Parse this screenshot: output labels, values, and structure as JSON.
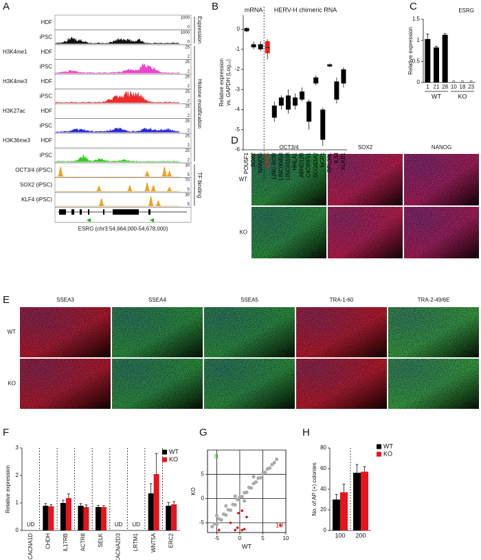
{
  "panel_a": {
    "letter": "A",
    "sections": [
      {
        "group": "Expression",
        "tracks": [
          {
            "rows": [
              {
                "label": "HDF",
                "scale": [
                  1000,
                  0
                ]
              },
              {
                "label": "iPSC",
                "scale": [
                  1000,
                  0
                ],
                "color": "#111111"
              }
            ]
          }
        ]
      },
      {
        "group": "Histone modification",
        "tracks": [
          {
            "mark": "H3K4me1",
            "rows": [
              {
                "label": "HDF",
                "scale": [
                  25,
                  2
                ]
              },
              {
                "label": "iPSC",
                "scale": [
                  25,
                  2
                ],
                "color": "#ee44cc"
              }
            ]
          },
          {
            "mark": "H3K4me3",
            "rows": [
              {
                "label": "HDF",
                "scale": [
                  25,
                  2
                ]
              },
              {
                "label": "iPSC",
                "scale": [
                  25,
                  2
                ],
                "color": "#ee2a2a"
              }
            ]
          },
          {
            "mark": "H3K27ac",
            "rows": [
              {
                "label": "HDF",
                "scale": [
                  25,
                  2
                ]
              },
              {
                "label": "iPSC",
                "scale": [
                  25,
                  2
                ],
                "color": "#2a2ad8"
              }
            ]
          },
          {
            "mark": "H3K36me3",
            "rows": [
              {
                "label": "HDF",
                "scale": [
                  25,
                  2
                ]
              },
              {
                "label": "iPSC",
                "scale": [
                  25,
                  2
                ],
                "color": "#33cc22"
              }
            ]
          }
        ]
      },
      {
        "group": "TF binding",
        "tracks": [
          {
            "rows": [
              {
                "label": "OCT3/4 (iPSC)",
                "scale": [
                  30,
                  5
                ],
                "color": "#f0a020"
              }
            ]
          },
          {
            "rows": [
              {
                "label": "SOX2 (iPSC)",
                "scale": [
                  70,
                  5
                ],
                "color": "#f0a020"
              }
            ]
          },
          {
            "rows": [
              {
                "label": "KLF4 (iPSC)",
                "scale": [
                  30,
                  5
                ],
                "color": "#f0a020"
              }
            ]
          }
        ]
      }
    ],
    "gene_label": "ESRG (chr3:54,664,000-54,678,000)"
  },
  "panel_d": {
    "letter": "D",
    "columns": [
      "OCT3/4",
      "SOX2",
      "NANOG"
    ],
    "rows": [
      "WT",
      "KO"
    ],
    "colors": [
      "#2e9a3c",
      "#c81e4e",
      "#b41e5a"
    ]
  },
  "panel_e": {
    "letter": "E",
    "columns": [
      "SSEA3",
      "SSEA4",
      "SSEA5",
      "TRA-1-60",
      "TRA-2-49/6E"
    ],
    "rows": [
      "WT",
      "KO"
    ],
    "colors": [
      "#c01a2a",
      "#2e9a3c",
      "#2e9a3c",
      "#c81a28",
      "#3aa83e"
    ]
  },
  "chart_data": [
    {
      "type": "box",
      "panel": "B",
      "group_labels": [
        "mRNA",
        "HERV-H chimeric RNA"
      ],
      "ylabel": [
        "Relative expression",
        "vs. GAPDH (Log₁₀)"
      ],
      "categories": [
        "POU5F1",
        "SOX2",
        "NANOG",
        "ESRG",
        "LINC-ROR",
        "LINC00458",
        "LINC01108",
        "HHLA1",
        "ABHD12B",
        "C4ORF51",
        "SCGB3A2",
        "NCR1",
        "RPL39L",
        "IL34",
        "KLKB1"
      ],
      "colors": [
        "#000000",
        "#000000",
        "#000000",
        "#ee1c1c",
        "#000000",
        "#000000",
        "#000000",
        "#000000",
        "#000000",
        "#000000",
        "#000000",
        "#000000",
        "#000000",
        "#000000",
        "#000000"
      ],
      "boxes": [
        {
          "min": -0.15,
          "q1": -0.1,
          "median": -0.05,
          "q3": 0.05,
          "max": 0.1
        },
        {
          "min": -1.0,
          "q1": -0.9,
          "median": -0.8,
          "q3": -0.75,
          "max": -0.6
        },
        {
          "min": -1.1,
          "q1": -1.0,
          "median": -0.9,
          "q3": -0.75,
          "max": -0.6
        },
        {
          "min": -1.5,
          "q1": -1.2,
          "median": -0.9,
          "q3": -0.6,
          "max": -0.5
        },
        {
          "min": -4.6,
          "q1": -4.4,
          "median": -4.1,
          "q3": -3.8,
          "max": -3.6
        },
        {
          "min": -4.0,
          "q1": -3.8,
          "median": -3.6,
          "q3": -3.4,
          "max": -3.3
        },
        {
          "min": -4.2,
          "q1": -4.0,
          "median": -3.6,
          "q3": -3.3,
          "max": -3.0
        },
        {
          "min": -4.0,
          "q1": -3.8,
          "median": -3.6,
          "q3": -3.4,
          "max": -3.2
        },
        {
          "min": -3.6,
          "q1": -3.5,
          "median": -3.3,
          "q3": -3.1,
          "max": -2.9
        },
        {
          "min": -5.0,
          "q1": -4.6,
          "median": -4.0,
          "q3": -3.6,
          "max": -3.5
        },
        {
          "min": -2.8,
          "q1": -2.7,
          "median": -2.6,
          "q3": -2.4,
          "max": -2.3
        },
        {
          "min": -5.8,
          "q1": -5.5,
          "median": -4.5,
          "q3": -4.0,
          "max": -3.9
        },
        {
          "min": -1.9,
          "q1": -1.85,
          "median": -1.8,
          "q3": -1.75,
          "max": -1.7
        },
        {
          "min": -3.7,
          "q1": -3.5,
          "median": -3.0,
          "q3": -2.6,
          "max": -2.4
        },
        {
          "min": -2.9,
          "q1": -2.7,
          "median": -2.4,
          "q3": -2.0,
          "max": -1.9
        }
      ],
      "ylim": [
        -6,
        0.7
      ],
      "yticks": [
        0,
        -1,
        -2,
        -3,
        -4,
        -5,
        -6
      ]
    },
    {
      "type": "bar",
      "panel": "C",
      "title": "ESRG",
      "ylabel": "Relative expression",
      "categories": [
        "1",
        "21",
        "28",
        "10",
        "18",
        "23"
      ],
      "group_labels": [
        "WT",
        "KO"
      ],
      "values": [
        1.03,
        0.83,
        1.13,
        0,
        0,
        0
      ],
      "errors": [
        0.12,
        0.03,
        0.03,
        0,
        0,
        0
      ],
      "color": "#000000",
      "ylim": [
        0,
        1.5
      ],
      "yticks": [
        0,
        0.5,
        1,
        1.5
      ]
    },
    {
      "type": "grouped-bar",
      "panel": "F",
      "ylabel": "Relative expression",
      "categories": [
        "CACNA1D",
        "CHDH",
        "IL17RB",
        "ACTR8",
        "SELK",
        "CACNA2D3",
        "LRTM1",
        "WNT5A",
        "ERC2"
      ],
      "series": [
        {
          "name": "WT",
          "color": "#000000",
          "values": [
            null,
            0.9,
            1.0,
            0.9,
            0.85,
            null,
            null,
            1.35,
            0.9
          ],
          "errors": [
            null,
            0.08,
            0.1,
            0.08,
            0.06,
            null,
            null,
            0.35,
            0.12
          ]
        },
        {
          "name": "KO",
          "color": "#e8141c",
          "values": [
            null,
            0.88,
            1.18,
            0.85,
            0.85,
            null,
            null,
            2.05,
            0.95
          ],
          "errors": [
            null,
            0.06,
            0.15,
            0.08,
            0.05,
            null,
            null,
            0.75,
            0.1
          ]
        }
      ],
      "annotations": [
        {
          "text": "UD",
          "category": "CACNA1D"
        },
        {
          "text": "UD",
          "category": "CACNA2D3"
        },
        {
          "text": "UD",
          "category": "LRTM1"
        }
      ],
      "ylim": [
        0,
        3
      ],
      "yticks": [
        0,
        1,
        2,
        3
      ]
    },
    {
      "type": "scatter",
      "panel": "G",
      "xlabel": "WT",
      "ylabel": "KO",
      "series": [
        {
          "color": "#aaaaaa",
          "x": [
            -6,
            -5.5,
            -5,
            -4.5,
            -4,
            -3.5,
            -3,
            -2.5,
            -2,
            -1.5,
            -1,
            -0.5,
            0,
            0.5,
            1,
            1.5,
            2,
            2.5,
            3,
            3.5,
            4,
            4.5,
            5,
            5.5,
            6,
            6.5,
            7,
            7.5,
            8,
            -5,
            -3,
            -1,
            1,
            3
          ],
          "values": [
            -5.8,
            -5.2,
            -5.3,
            -4.2,
            -4.4,
            -3.2,
            -3.4,
            -2.3,
            -2.4,
            -1.2,
            -1.3,
            -0.2,
            0.3,
            0.4,
            1.2,
            1.3,
            2.3,
            2.2,
            3.1,
            3.4,
            4.2,
            4.3,
            5.1,
            5.4,
            6.1,
            6.3,
            7.0,
            7.4,
            8.1,
            -3.5,
            -1.5,
            0.5,
            -0.5,
            4.5
          ]
        },
        {
          "color": "#e01010",
          "x": [
            -4.5,
            -2,
            -1,
            -0.5,
            0.5,
            1,
            -0.3,
            1.5,
            0.5,
            8.8
          ],
          "values": [
            -6.5,
            -5,
            -6.5,
            -6,
            -6.5,
            -6.3,
            -3,
            -3.8,
            -2.5,
            -5.5
          ]
        }
      ],
      "annotations": [
        {
          "text": "0",
          "color": "#22aa22"
        },
        {
          "text": "10",
          "color": "#dd1111"
        }
      ],
      "xlim": [
        -7,
        10
      ],
      "ylim": [
        -7,
        10
      ],
      "xticks": [
        -5,
        0,
        5,
        10
      ],
      "yticks": [
        -5,
        0,
        5
      ],
      "grid": true
    },
    {
      "type": "grouped-bar",
      "panel": "H",
      "ylabel": "No. of AP (+) colonies",
      "categories": [
        "100",
        "200"
      ],
      "series": [
        {
          "name": "WT",
          "color": "#000000",
          "values": [
            30,
            56
          ],
          "errors": [
            5,
            8
          ]
        },
        {
          "name": "KO",
          "color": "#e8141c",
          "values": [
            37,
            57
          ],
          "errors": [
            8,
            5
          ]
        }
      ],
      "ylim": [
        0,
        80
      ],
      "yticks": [
        0,
        20,
        40,
        60,
        80
      ]
    }
  ]
}
